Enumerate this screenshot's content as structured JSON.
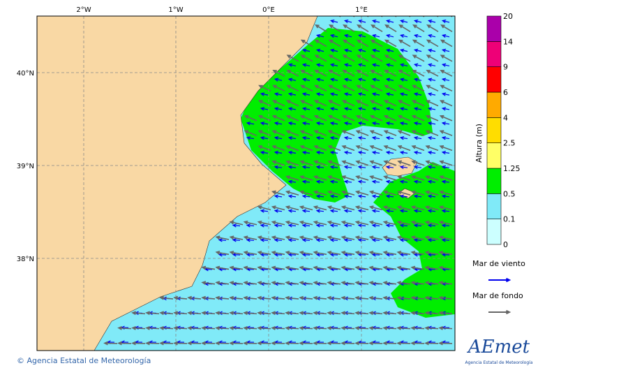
{
  "map": {
    "lon_labels": [
      "2°W",
      "1°W",
      "0°E",
      "1°E"
    ],
    "lat_labels": [
      "40°N",
      "39°N",
      "38°N"
    ],
    "colorbar": {
      "title": "Altura (m)",
      "levels": [
        0,
        0.1,
        0.5,
        1.25,
        2.5,
        4,
        6,
        9,
        14,
        20
      ],
      "colors": [
        "#ccffff",
        "#80eaf8",
        "#00ee00",
        "#ffff66",
        "#ffdd00",
        "#ffaa00",
        "#ff0000",
        "#ee0077",
        "#aa00aa"
      ]
    },
    "legend": [
      {
        "label": "Mar de viento",
        "color": "#0000ee"
      },
      {
        "label": "Mar de fondo",
        "color": "#666666"
      }
    ],
    "attribution": "© Agencia Estatal de Meteorología",
    "logo": {
      "name": "AEmet",
      "subtitle": "Agencia Estatal de Meteorología"
    }
  }
}
